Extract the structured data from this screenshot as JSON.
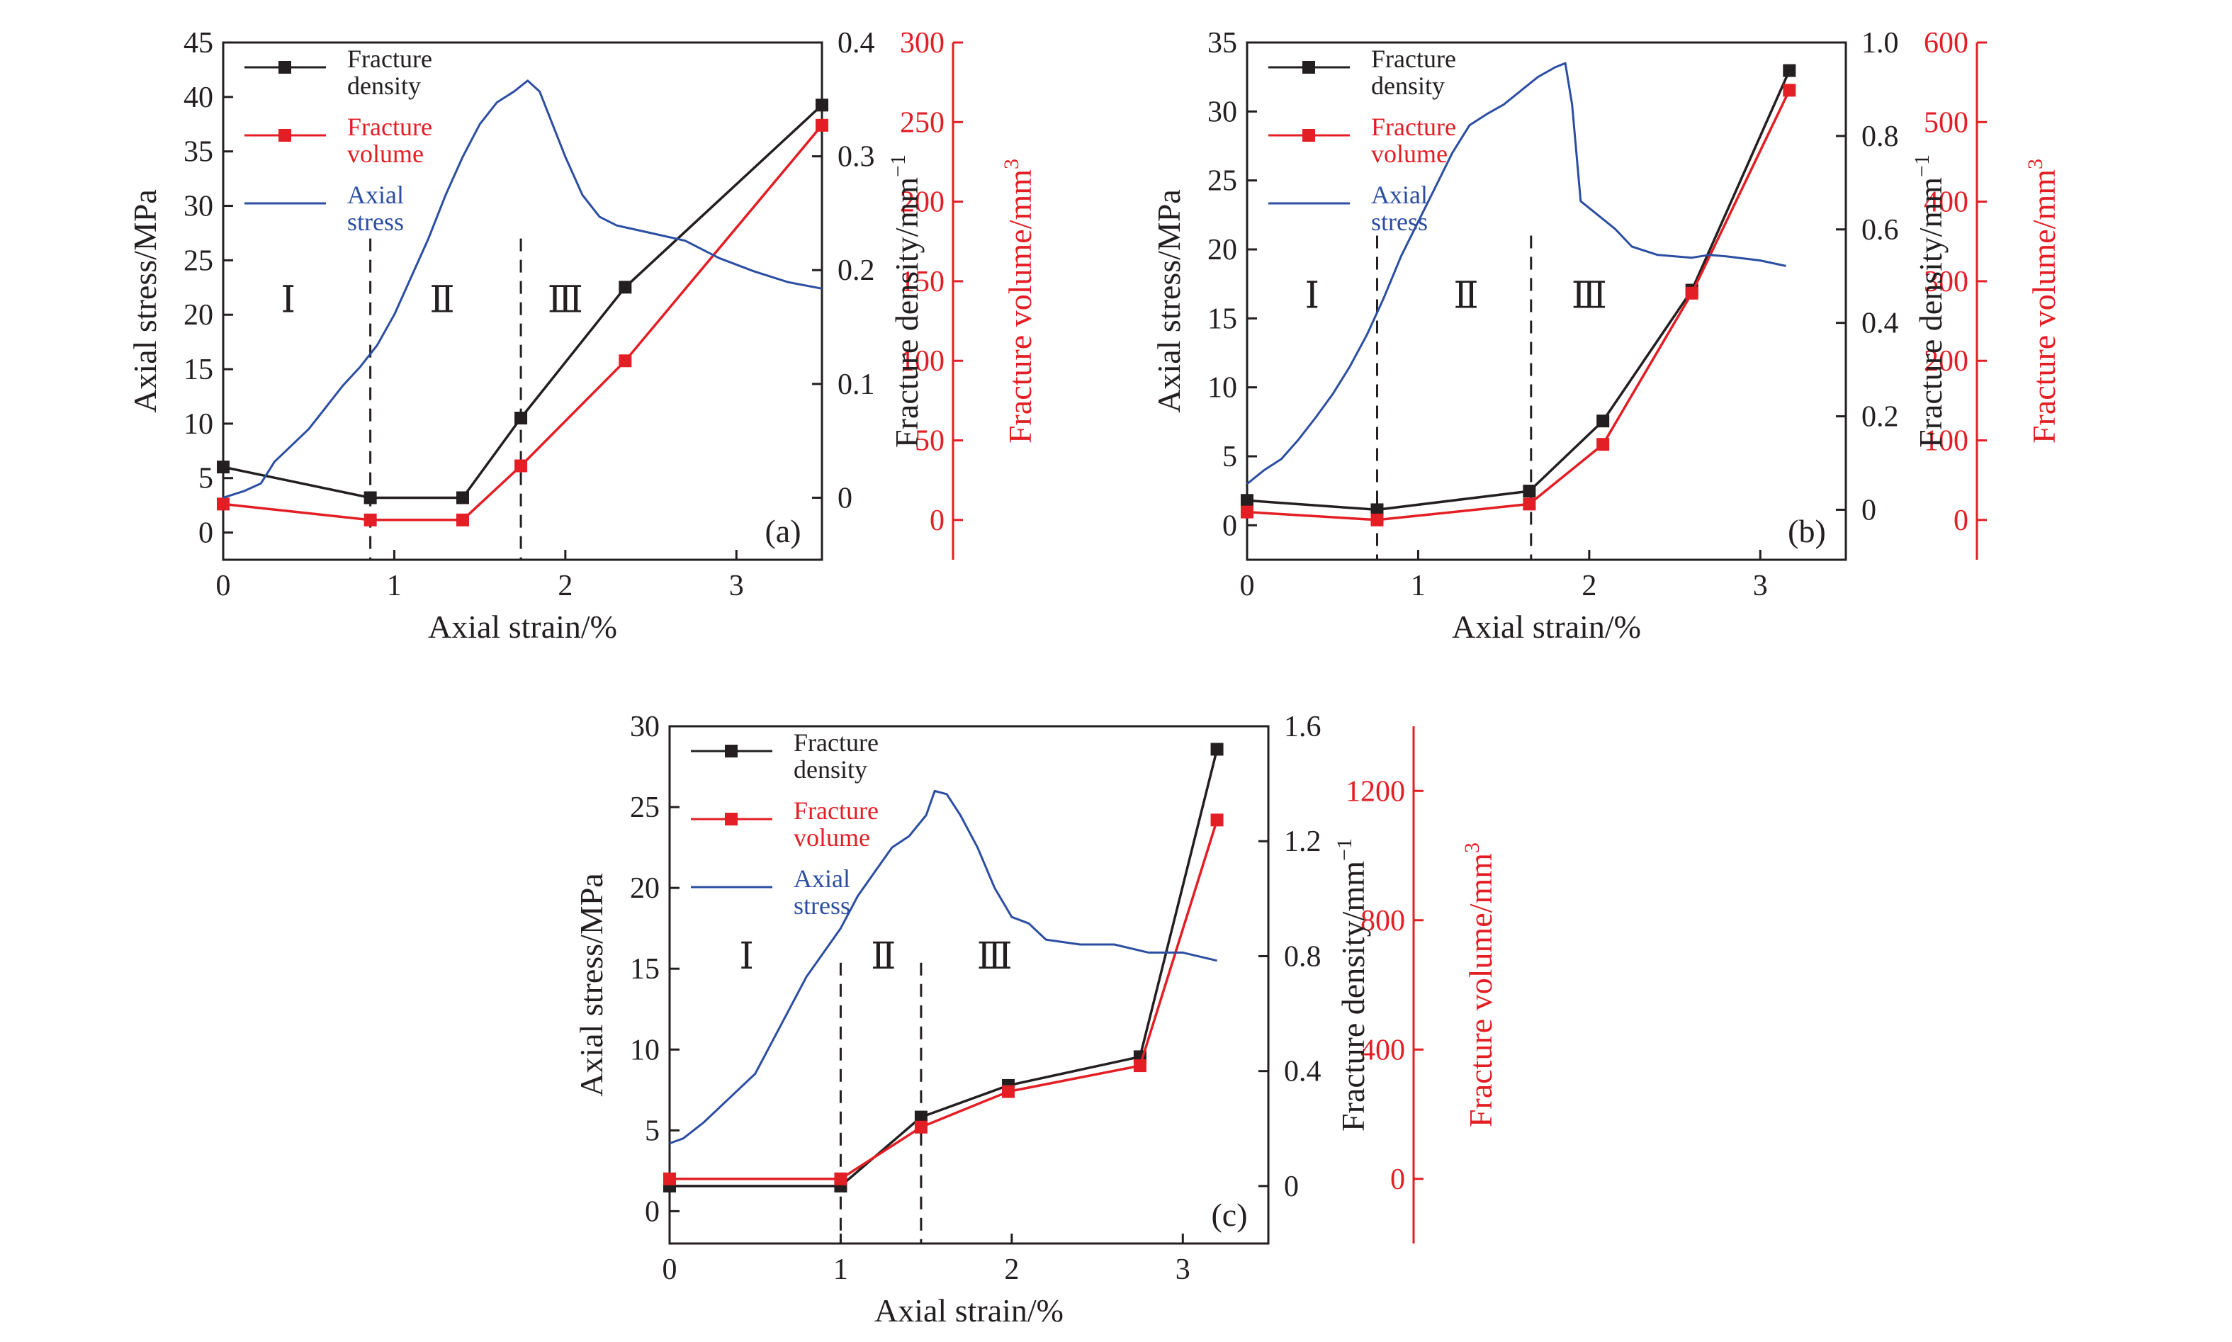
{
  "colors": {
    "black": "#231f20",
    "red": "#e31e24",
    "blue": "#2b4ea2"
  },
  "legend": {
    "density": [
      "Fracture",
      "density"
    ],
    "volume": [
      "Fracture",
      "volume"
    ],
    "stress": [
      "Axial",
      "stress"
    ]
  },
  "chart_data": [
    {
      "panel_label": "(a)",
      "type": "line",
      "xlabel": "Axial strain/%",
      "ylabel_left": "Axial stress/MPa",
      "ylabel_right1": "Fracture density/mm",
      "ylabel_right1_sup": "−1",
      "ylabel_right2": "Fracture volume/mm",
      "ylabel_right2_sup": "3",
      "xlim": [
        0,
        3.5
      ],
      "ylim_stress": [
        -2.5,
        45
      ],
      "ylim_density": [
        -0.0545,
        0.4
      ],
      "ylim_volume": [
        -25,
        300
      ],
      "xticks": [
        0,
        1,
        2,
        3
      ],
      "yticks_stress": [
        0,
        5,
        10,
        15,
        20,
        25,
        30,
        35,
        40,
        45
      ],
      "yticks_density": [
        "0",
        "0.1",
        "0.2",
        "0.3",
        "0.4"
      ],
      "yticks_volume": [
        0,
        50,
        100,
        150,
        200,
        250,
        300
      ],
      "stage_lines_x": [
        0.86,
        1.74
      ],
      "stage_labels": [
        {
          "text": "Ⅰ",
          "x": 0.38
        },
        {
          "text": "Ⅱ",
          "x": 1.28
        },
        {
          "text": "Ⅲ",
          "x": 2.0
        }
      ],
      "series": [
        {
          "name": "Fracture density",
          "axis": "density",
          "x": [
            0,
            0.86,
            1.4,
            1.74,
            2.35,
            3.5
          ],
          "y": [
            0.027,
            0.0,
            0.0,
            0.07,
            0.185,
            0.345
          ]
        },
        {
          "name": "Fracture volume",
          "axis": "volume",
          "x": [
            0,
            0.86,
            1.4,
            1.74,
            2.35,
            3.5
          ],
          "y": [
            10,
            0,
            0,
            34,
            100,
            248
          ]
        },
        {
          "name": "Axial stress",
          "axis": "stress",
          "x": [
            0,
            0.12,
            0.22,
            0.3,
            0.4,
            0.5,
            0.6,
            0.7,
            0.8,
            0.9,
            1.0,
            1.1,
            1.2,
            1.3,
            1.4,
            1.5,
            1.6,
            1.7,
            1.78,
            1.85,
            1.9,
            2.0,
            2.1,
            2.2,
            2.3,
            2.5,
            2.7,
            2.9,
            3.1,
            3.3,
            3.5
          ],
          "y": [
            3.2,
            3.8,
            4.5,
            6.5,
            8.0,
            9.5,
            11.5,
            13.5,
            15.2,
            17.2,
            20.0,
            23.5,
            27.0,
            31.0,
            34.5,
            37.5,
            39.5,
            40.5,
            41.5,
            40.5,
            38.5,
            34.5,
            31.0,
            29.0,
            28.2,
            27.5,
            26.8,
            25.2,
            24.0,
            23.0,
            22.4
          ]
        }
      ]
    },
    {
      "panel_label": "(b)",
      "type": "line",
      "xlabel": "Axial strain/%",
      "ylabel_left": "Axial stress/MPa",
      "ylabel_right1": "Fracture density/mm",
      "ylabel_right1_sup": "−1",
      "ylabel_right2": "Fracture volume/mm",
      "ylabel_right2_sup": "3",
      "xlim": [
        0,
        3.5
      ],
      "ylim_stress": [
        -2.5,
        35
      ],
      "ylim_density": [
        -0.107,
        1.0
      ],
      "ylim_volume": [
        -50,
        600
      ],
      "xticks": [
        0,
        1,
        2,
        3
      ],
      "yticks_stress": [
        0,
        5,
        10,
        15,
        20,
        25,
        30,
        35
      ],
      "yticks_density": [
        "0",
        "0.2",
        "0.4",
        "0.6",
        "0.8",
        "1.0"
      ],
      "yticks_volume": [
        0,
        100,
        200,
        300,
        400,
        500,
        600
      ],
      "stage_lines_x": [
        0.76,
        1.66
      ],
      "stage_labels": [
        {
          "text": "Ⅰ",
          "x": 0.38
        },
        {
          "text": "Ⅱ",
          "x": 1.28
        },
        {
          "text": "Ⅲ",
          "x": 2.0
        }
      ],
      "series": [
        {
          "name": "Fracture density",
          "axis": "density",
          "x": [
            0,
            0.76,
            1.65,
            2.08,
            2.6,
            3.17
          ],
          "y": [
            0.02,
            0.0,
            0.04,
            0.19,
            0.47,
            0.94
          ]
        },
        {
          "name": "Fracture volume",
          "axis": "volume",
          "x": [
            0,
            0.76,
            1.65,
            2.08,
            2.6,
            3.17
          ],
          "y": [
            10,
            0,
            20,
            95,
            285,
            540
          ]
        },
        {
          "name": "Axial stress",
          "axis": "stress",
          "x": [
            0,
            0.1,
            0.2,
            0.3,
            0.4,
            0.5,
            0.6,
            0.7,
            0.8,
            0.9,
            1.0,
            1.1,
            1.2,
            1.3,
            1.4,
            1.5,
            1.6,
            1.7,
            1.8,
            1.86,
            1.9,
            1.95,
            2.05,
            2.15,
            2.25,
            2.4,
            2.6,
            2.7,
            2.8,
            3.0,
            3.15
          ],
          "y": [
            3.0,
            4.0,
            4.8,
            6.2,
            7.8,
            9.5,
            11.5,
            13.8,
            16.5,
            19.5,
            22.0,
            24.5,
            27.0,
            29.0,
            29.8,
            30.5,
            31.5,
            32.5,
            33.2,
            33.5,
            30.5,
            23.5,
            22.5,
            21.5,
            20.2,
            19.6,
            19.4,
            19.6,
            19.5,
            19.2,
            18.8
          ]
        }
      ]
    },
    {
      "panel_label": "(c)",
      "type": "line",
      "xlabel": "Axial strain/%",
      "ylabel_left": "Axial stress/MPa",
      "ylabel_right1": "Fracture density/mm",
      "ylabel_right1_sup": "−1",
      "ylabel_right2": "Fracture volume/mm",
      "ylabel_right2_sup": "3",
      "xlim": [
        0,
        3.5
      ],
      "ylim_stress": [
        -2,
        30
      ],
      "ylim_density": [
        -0.2,
        1.6
      ],
      "ylim_volume": [
        -200,
        1400
      ],
      "xticks": [
        0,
        1,
        2,
        3
      ],
      "yticks_stress": [
        0,
        5,
        10,
        15,
        20,
        25,
        30
      ],
      "yticks_density": [
        "0",
        "0.4",
        "0.8",
        "1.2",
        "1.6"
      ],
      "yticks_volume": [
        0,
        400,
        800,
        1200
      ],
      "stage_lines_x": [
        1.0,
        1.47
      ],
      "stage_labels": [
        {
          "text": "Ⅰ",
          "x": 0.45
        },
        {
          "text": "Ⅱ",
          "x": 1.25
        },
        {
          "text": "Ⅲ",
          "x": 1.9
        }
      ],
      "series": [
        {
          "name": "Fracture density",
          "axis": "density",
          "x": [
            0,
            1.0,
            1.47,
            1.98,
            2.75,
            3.2
          ],
          "y": [
            0.0,
            0.0,
            0.24,
            0.35,
            0.45,
            1.52
          ]
        },
        {
          "name": "Fracture volume",
          "axis": "volume",
          "x": [
            0,
            1.0,
            1.47,
            1.98,
            2.75,
            3.2
          ],
          "y": [
            0,
            0,
            160,
            270,
            350,
            1110
          ]
        },
        {
          "name": "Axial stress",
          "axis": "stress",
          "x": [
            0,
            0.08,
            0.2,
            0.35,
            0.5,
            0.6,
            0.7,
            0.8,
            0.9,
            1.0,
            1.1,
            1.2,
            1.3,
            1.4,
            1.5,
            1.55,
            1.62,
            1.7,
            1.8,
            1.9,
            2.0,
            2.1,
            2.2,
            2.4,
            2.6,
            2.8,
            3.0,
            3.2
          ],
          "y": [
            4.2,
            4.5,
            5.5,
            7.0,
            8.5,
            10.5,
            12.5,
            14.5,
            16.0,
            17.5,
            19.5,
            21.0,
            22.5,
            23.2,
            24.5,
            26.0,
            25.8,
            24.5,
            22.5,
            20.0,
            18.2,
            17.8,
            16.8,
            16.5,
            16.5,
            16.0,
            16.0,
            15.5
          ]
        }
      ]
    }
  ]
}
